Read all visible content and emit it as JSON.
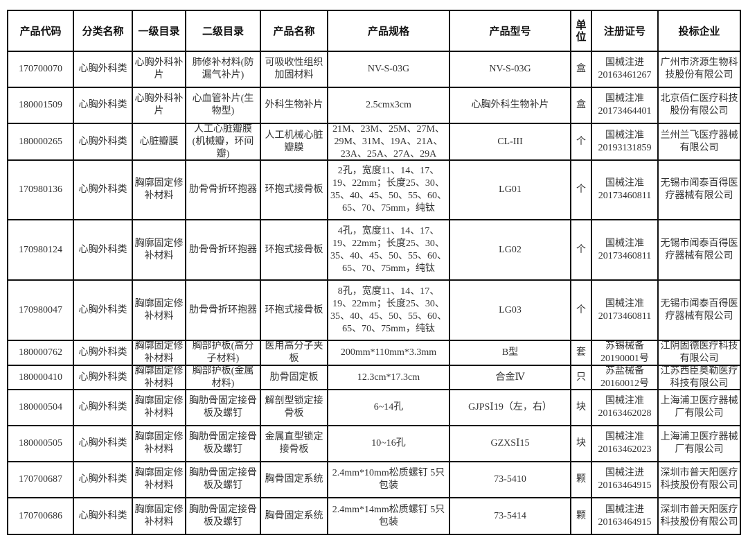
{
  "table": {
    "headers": [
      "产品代码",
      "分类名称",
      "一级目录",
      "二级目录",
      "产品名称",
      "产品规格",
      "产品型号",
      "单位",
      "注册证号",
      "投标企业"
    ],
    "rows": [
      [
        "170700070",
        "心胸外科类",
        "心胸外科补片",
        "肺修补材料(防漏气补片)",
        "可吸收性组织加固材料",
        "NV-S-03G",
        "NV-S-03G",
        "盒",
        "国械注进20163461267",
        "广州市济源生物科技股份有限公司"
      ],
      [
        "180001509",
        "心胸外科类",
        "心胸外科补片",
        "心血管补片(生物型)",
        "外科生物补片",
        "2.5cmx3cm",
        "心胸外科生物补片",
        "盒",
        "国械注准20173464401",
        "北京佰仁医疗科技股份有限公司"
      ],
      [
        "180000265",
        "心胸外科类",
        "心脏瓣膜",
        "人工心脏瓣膜(机械瓣，环间瓣)",
        "人工机械心脏瓣膜",
        "21M、23M、25M、27M、29M、31M、19A、21A、23A、25A、27A、29A",
        "CL-III",
        "个",
        "国械注准20193131859",
        "兰州兰飞医疗器械有限公司"
      ],
      [
        "170980136",
        "心胸外科类",
        "胸廓固定修补材料",
        "肋骨骨折环抱器",
        "环抱式接骨板",
        "2孔，宽度11、14、17、19、22mm；长度25、30、35、40、45、50、55、60、65、70、75mm，纯钛",
        "LG01",
        "个",
        "国械注准20173460811",
        "无锡市闻泰百得医疗器械有限公司"
      ],
      [
        "170980124",
        "心胸外科类",
        "胸廓固定修补材料",
        "肋骨骨折环抱器",
        "环抱式接骨板",
        "4孔，宽度11、14、17、19、22mm；长度25、30、35、40、45、50、55、60、65、70、75mm，纯钛",
        "LG02",
        "个",
        "国械注准20173460811",
        "无锡市闻泰百得医疗器械有限公司"
      ],
      [
        "170980047",
        "心胸外科类",
        "胸廓固定修补材料",
        "肋骨骨折环抱器",
        "环抱式接骨板",
        "8孔，宽度11、14、17、19、22mm；长度25、30、35、40、45、50、55、60、65、70、75mm，纯钛",
        "LG03",
        "个",
        "国械注准20173460811",
        "无锡市闻泰百得医疗器械有限公司"
      ],
      [
        "180000762",
        "心胸外科类",
        "胸廓固定修补材料",
        "胸部护板(高分子材料)",
        "医用高分子夹板",
        "200mm*110mm*3.3mm",
        "B型",
        "套",
        "苏锡械备20190001号",
        "江阴固德医疗科技有限公司"
      ],
      [
        "180000410",
        "心胸外科类",
        "胸廓固定修补材料",
        "胸部护板(金属材料)",
        "肋骨固定板",
        "12.3cm*17.3cm",
        "合金Ⅳ",
        "只",
        "苏盐械备20160012号",
        "江苏西臣奥勒医疗科技有限公司"
      ],
      [
        "180000504",
        "心胸外科类",
        "胸廓固定修补材料",
        "胸肋骨固定接骨板及螺钉",
        "解剖型锁定接骨板",
        "6~14孔",
        "GJPSⅠ19（左，右）",
        "块",
        "国械注准20163462028",
        "上海浦卫医疗器械厂有限公司"
      ],
      [
        "180000505",
        "心胸外科类",
        "胸廓固定修补材料",
        "胸肋骨固定接骨板及螺钉",
        "金属直型锁定接骨板",
        "10~16孔",
        "GZXSⅠ15",
        "块",
        "国械注准20163462023",
        "上海浦卫医疗器械厂有限公司"
      ],
      [
        "170700687",
        "心胸外科类",
        "胸廓固定修补材料",
        "胸肋骨固定接骨板及螺钉",
        "胸骨固定系统",
        "2.4mm*10mm松质螺钉 5只包装",
        "73-5410",
        "颗",
        "国械注进20163464915",
        "深圳市普天阳医疗科技股份有限公司"
      ],
      [
        "170700686",
        "心胸外科类",
        "胸廓固定修补材料",
        "胸肋骨固定接骨板及螺钉",
        "胸骨固定系统",
        "2.4mm*14mm松质螺钉 5只包装",
        "73-5414",
        "颗",
        "国械注进20163464915",
        "深圳市普天阳医疗科技股份有限公司"
      ]
    ]
  }
}
